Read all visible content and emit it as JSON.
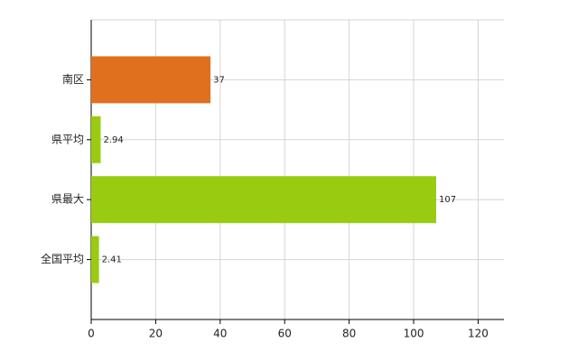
{
  "chart_data": {
    "type": "bar",
    "orientation": "horizontal",
    "categories": [
      "南区",
      "県平均",
      "県最大",
      "全国平均"
    ],
    "values": [
      37,
      2.94,
      107,
      2.41
    ],
    "colors": [
      "#e0701e",
      "#99cc11",
      "#99cc11",
      "#99cc11"
    ],
    "xlim": [
      0,
      128
    ],
    "xticks": [
      0,
      20,
      40,
      60,
      80,
      100,
      120
    ],
    "grid": true
  }
}
